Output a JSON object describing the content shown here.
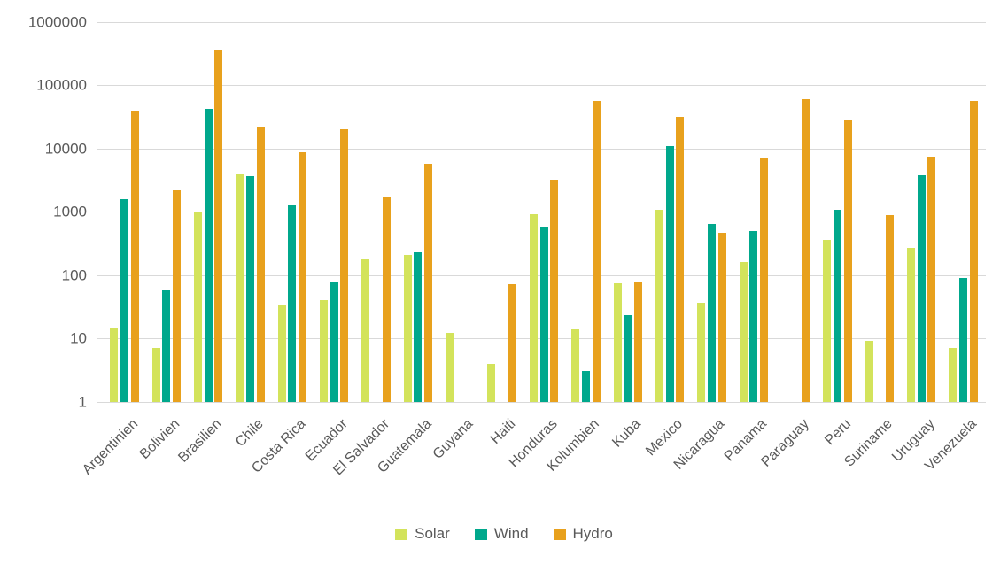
{
  "chart": {
    "y_ticks": [
      "1000000",
      "100000",
      "10000",
      "1000",
      "100",
      "10",
      "1"
    ],
    "colors": {
      "solar": "#d3e35b",
      "wind": "#00a88c",
      "hydro": "#e8a11d",
      "gridline": "#d9d9d9",
      "text": "#595959",
      "background": "#ffffff"
    }
  },
  "chart_data": {
    "type": "bar",
    "scale": "log",
    "title": "",
    "xlabel": "",
    "ylabel": "",
    "ylim": [
      1,
      1000000
    ],
    "grid": true,
    "legend_position": "bottom",
    "categories": [
      "Argentinien",
      "Bolivien",
      "Brasilien",
      "Chile",
      "Costa Rica",
      "Ecuador",
      "El Salvador",
      "Guatemala",
      "Guyana",
      "Haiti",
      "Honduras",
      "Kolumbien",
      "Kuba",
      "Mexico",
      "Nicaragua",
      "Panama",
      "Paraguay",
      "Peru",
      "Suriname",
      "Uruguay",
      "Venezuela"
    ],
    "series": [
      {
        "name": "Solar",
        "color": "#d3e35b",
        "values": [
          15,
          7,
          1000,
          3900,
          34,
          40,
          180,
          210,
          12,
          4,
          930,
          14,
          73,
          1070,
          36,
          160,
          null,
          360,
          9,
          270,
          7
        ]
      },
      {
        "name": "Wind",
        "color": "#00a88c",
        "values": [
          1600,
          60,
          42000,
          3700,
          1300,
          80,
          null,
          230,
          null,
          null,
          580,
          3,
          23,
          10800,
          650,
          500,
          null,
          1080,
          null,
          3800,
          90
        ]
      },
      {
        "name": "Hydro",
        "color": "#e8a11d",
        "values": [
          40000,
          2200,
          360000,
          21500,
          8800,
          20000,
          1700,
          5800,
          null,
          72,
          3200,
          56000,
          80,
          32000,
          470,
          7300,
          60000,
          29000,
          900,
          7500,
          56000
        ]
      }
    ]
  }
}
